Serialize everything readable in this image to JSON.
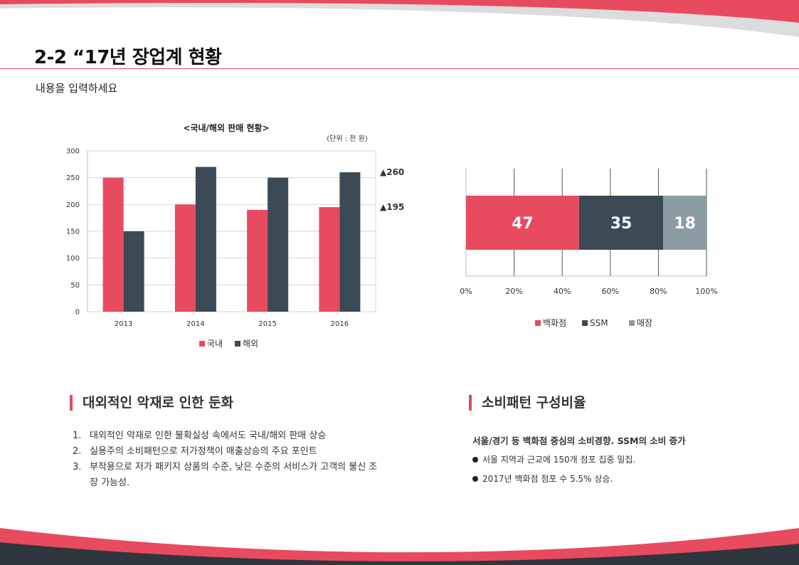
{
  "header": {
    "title": "2-2 “17년 장업계 현황",
    "subtitle": "내용을 입력하세요"
  },
  "colors": {
    "accent_red": "#e84a5f",
    "dark_slate": "#3b4a54",
    "gray_blue": "#8c9ca5"
  },
  "chart_data": [
    {
      "type": "bar",
      "title": "<국내/해외 판매 현황>",
      "unit_note": "(단위 : 천 원)",
      "categories": [
        "2013",
        "2014",
        "2015",
        "2016"
      ],
      "series": [
        {
          "name": "국내",
          "values": [
            250,
            200,
            190,
            195
          ],
          "color": "#e84a5f"
        },
        {
          "name": "해외",
          "values": [
            150,
            270,
            250,
            260
          ],
          "color": "#3b4a54"
        }
      ],
      "ylim": [
        0,
        300
      ],
      "yticks": [
        0,
        50,
        100,
        150,
        200,
        250,
        300
      ],
      "annotations": [
        {
          "text": "▲260",
          "value": 260
        },
        {
          "text": "▲195",
          "value": 195
        }
      ],
      "grid": true,
      "legend": "bottom"
    },
    {
      "type": "bar",
      "orientation": "horizontal-stacked-100",
      "categories": [
        ""
      ],
      "series": [
        {
          "name": "백화점",
          "values": [
            47
          ],
          "label": "47",
          "color": "#e84a5f"
        },
        {
          "name": "SSM",
          "values": [
            35
          ],
          "label": "35",
          "color": "#3b4a54"
        },
        {
          "name": "매장",
          "values": [
            18
          ],
          "label": "18",
          "color": "#8c9ca5"
        }
      ],
      "xlim": [
        0,
        100
      ],
      "xticks": [
        "0%",
        "20%",
        "40%",
        "60%",
        "80%",
        "100%"
      ],
      "grid": true,
      "legend": "bottom"
    }
  ],
  "left_section": {
    "heading": "대외적인 악재로 인한 둔화",
    "items": [
      {
        "num": "1.",
        "text": "대외적인 악재로 인한 불확실성 속에서도 국내/해외 판매 상승"
      },
      {
        "num": "2.",
        "text": "실용주의 소비패턴으로 저가정책이 매출상승의 주요 포인트"
      },
      {
        "num": "3.",
        "text": "부작용으로 저가 패키지 상품의 수준, 낮은 수준의 서비스가 고객의 불신 조장 가능성."
      }
    ]
  },
  "right_section": {
    "heading": "소비패턴 구성비율",
    "lead": "서울/경기 등 백화점 중심의 소비경향. SSM의 소비 증가",
    "bullets": [
      "서울 지역과 근교에 150개 점포 집중 밀집.",
      "2017년 백화점 점포 수 5.5% 상승."
    ]
  }
}
